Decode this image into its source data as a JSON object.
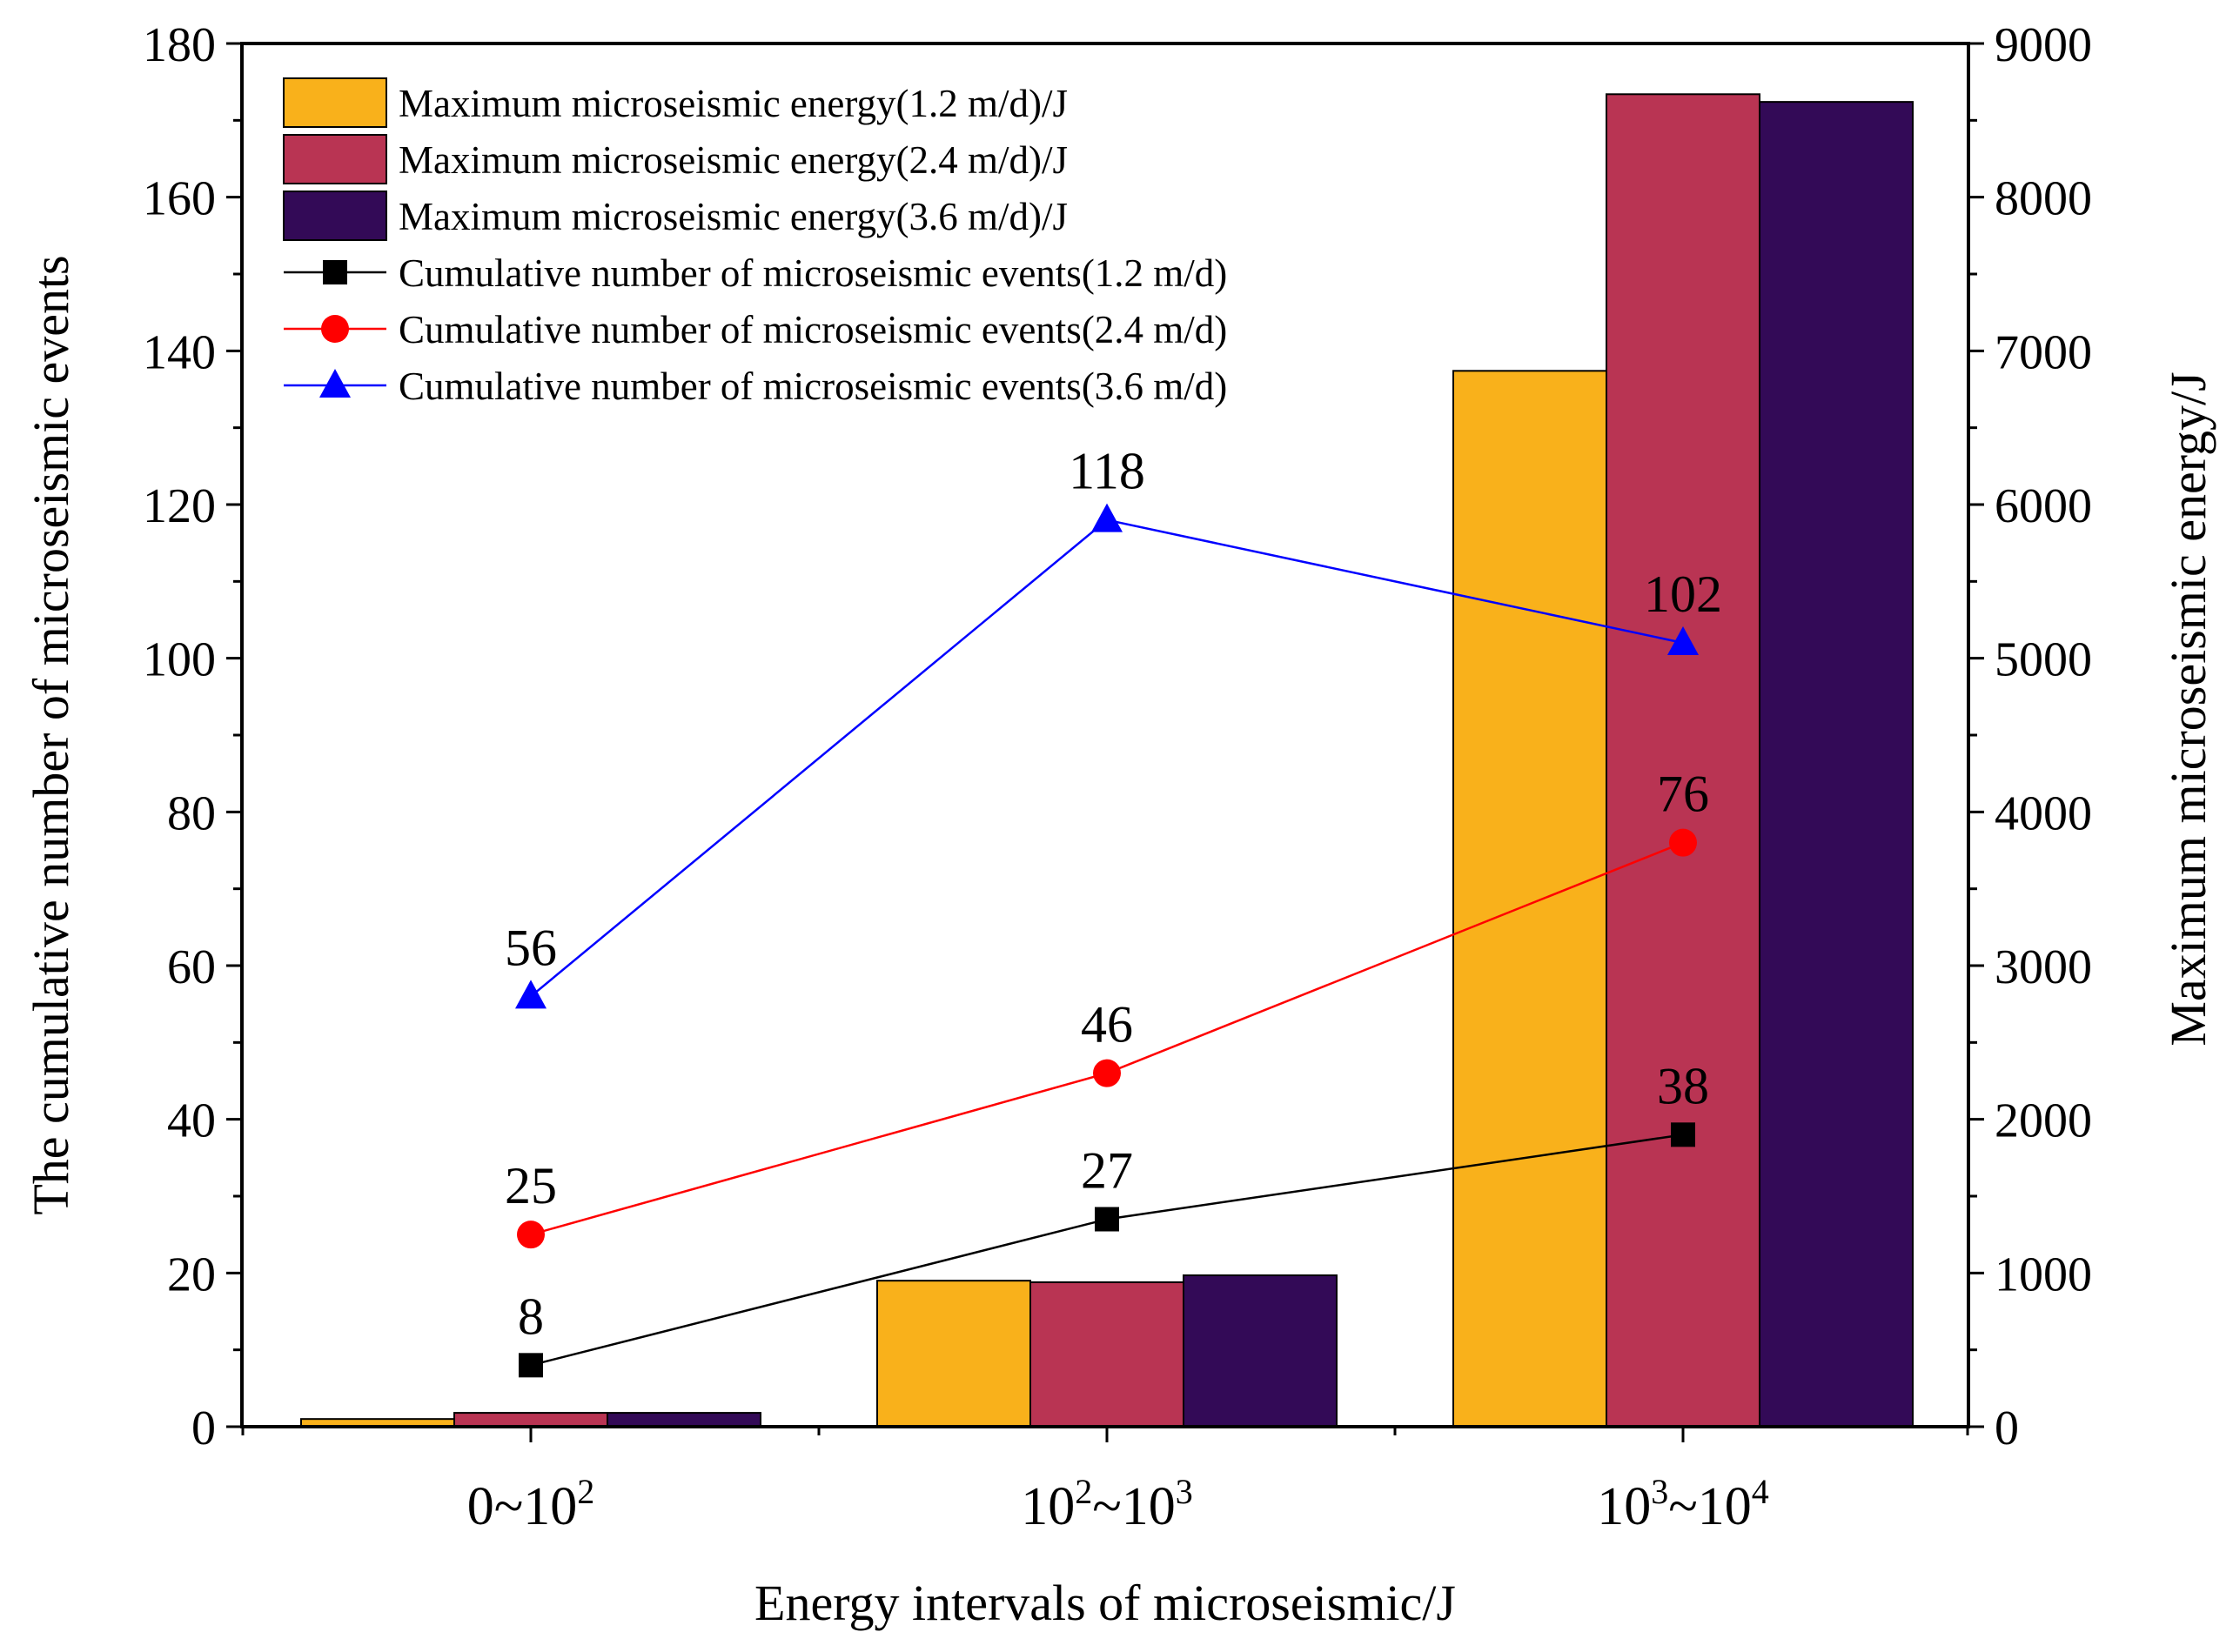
{
  "chart_data": {
    "type": "bar+line",
    "categories": [
      {
        "base": "0~10",
        "sup": "2",
        "tail": "",
        "tail_sup": ""
      },
      {
        "base": "10",
        "sup": "2",
        "tail": "~10",
        "tail_sup": "3"
      },
      {
        "base": "10",
        "sup": "3",
        "tail": "~10",
        "tail_sup": "4"
      }
    ],
    "xlabel": "Energy intervals of microseismic/J",
    "ylabel_left": "The cumulative number of microseismic events",
    "ylabel_right": "Maximum microseismic energy/J",
    "ylim_left": [
      0,
      180
    ],
    "ylim_right": [
      0,
      9000
    ],
    "yticks_left": [
      0,
      20,
      40,
      60,
      80,
      100,
      120,
      140,
      160,
      180
    ],
    "yticks_right": [
      0,
      1000,
      2000,
      3000,
      4000,
      5000,
      6000,
      7000,
      8000,
      9000
    ],
    "bar_series": [
      {
        "name": "Maximum microseismic energy(1.2 m/d)/J",
        "color": "#F9B11B",
        "values": [
          50,
          950,
          6870
        ]
      },
      {
        "name": "Maximum microseismic energy(2.4 m/d)/J",
        "color": "#B93453",
        "values": [
          90,
          940,
          8670
        ]
      },
      {
        "name": "Maximum microseismic energy(3.6 m/d)/J",
        "color": "#330A57",
        "values": [
          90,
          985,
          8620
        ]
      }
    ],
    "line_series": [
      {
        "name": "Cumulative number of microseismic events(1.2 m/d)",
        "color": "#000000",
        "marker": "square",
        "values": [
          8,
          27,
          38
        ],
        "labels": [
          "8",
          "27",
          "38"
        ]
      },
      {
        "name": "Cumulative number of microseismic events(2.4 m/d)",
        "color": "#FF0000",
        "marker": "circle",
        "values": [
          25,
          46,
          76
        ],
        "labels": [
          "25",
          "46",
          "76"
        ]
      },
      {
        "name": "Cumulative number of microseismic events(3.6 m/d)",
        "color": "#0000FF",
        "marker": "triangle",
        "values": [
          56,
          118,
          102
        ],
        "labels": [
          "56",
          "118",
          "102"
        ]
      }
    ],
    "legend_position": "top-left"
  }
}
